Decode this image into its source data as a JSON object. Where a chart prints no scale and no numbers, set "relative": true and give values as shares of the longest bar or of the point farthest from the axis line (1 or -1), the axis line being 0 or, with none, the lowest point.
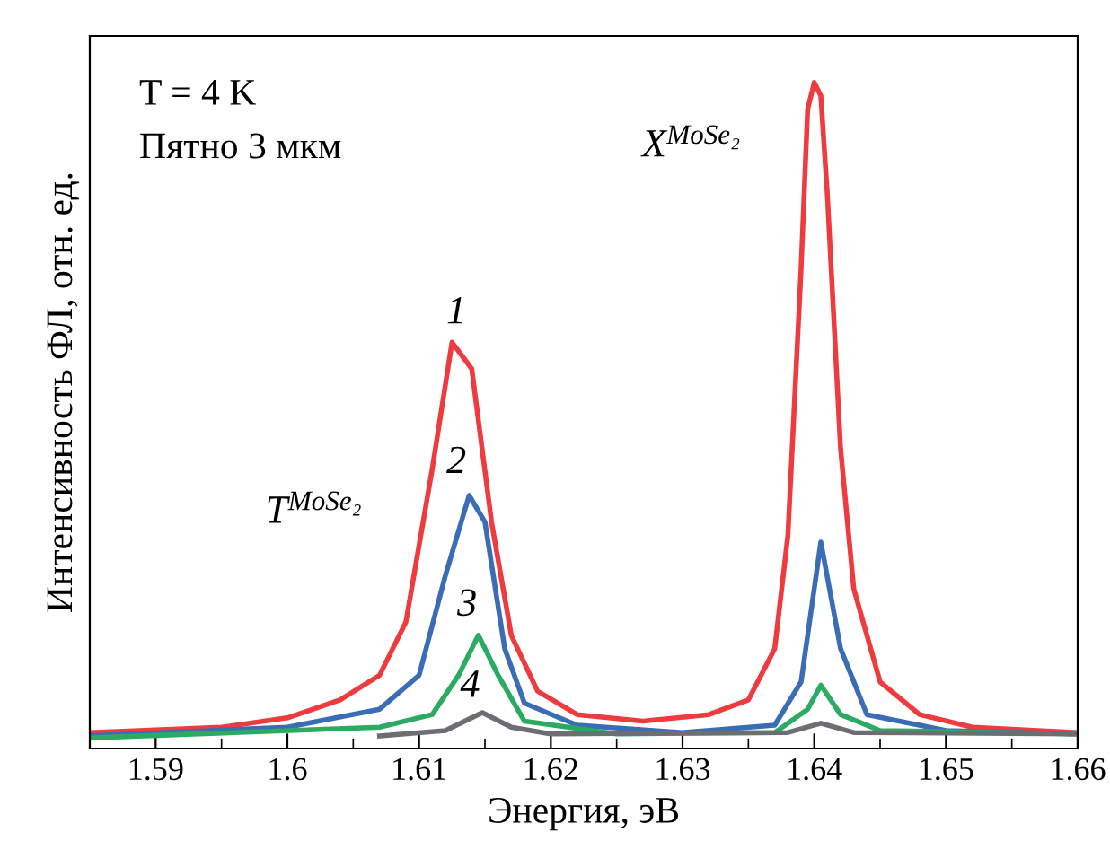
{
  "chart_data": {
    "type": "line",
    "relative": true,
    "xlabel": "Энергия, эВ",
    "ylabel": "Интенсивность ФЛ, отн. ед.",
    "xlim": [
      1.585,
      1.66
    ],
    "xticks": [
      1.59,
      1.6,
      1.61,
      1.62,
      1.63,
      1.64,
      1.65,
      1.66
    ],
    "tick_labels": "x",
    "grid": false,
    "legend": false,
    "marker": "none",
    "line_style": "solid",
    "series": [
      {
        "color": "#ee3b3f",
        "x": [
          1.585,
          1.595,
          1.6,
          1.604,
          1.607,
          1.609,
          1.611,
          1.6125,
          1.614,
          1.6155,
          1.617,
          1.619,
          1.622,
          1.627,
          1.632,
          1.635,
          1.637,
          1.638,
          1.639,
          1.6395,
          1.64,
          1.6405,
          1.641,
          1.642,
          1.643,
          1.645,
          1.648,
          1.652,
          1.66
        ],
        "values": [
          0.024,
          0.032,
          0.046,
          0.073,
          0.11,
          0.19,
          0.42,
          0.61,
          0.57,
          0.34,
          0.17,
          0.086,
          0.051,
          0.041,
          0.051,
          0.073,
          0.15,
          0.32,
          0.72,
          0.96,
          1.0,
          0.98,
          0.83,
          0.45,
          0.24,
          0.1,
          0.051,
          0.032,
          0.024
        ]
      },
      {
        "color": "#3a6db5",
        "x": [
          1.585,
          1.6,
          1.607,
          1.61,
          1.612,
          1.6138,
          1.615,
          1.6165,
          1.618,
          1.622,
          1.63,
          1.637,
          1.639,
          1.6405,
          1.642,
          1.644,
          1.65,
          1.66
        ],
        "values": [
          0.019,
          0.032,
          0.059,
          0.11,
          0.26,
          0.38,
          0.34,
          0.15,
          0.068,
          0.035,
          0.024,
          0.035,
          0.1,
          0.31,
          0.15,
          0.051,
          0.027,
          0.022
        ]
      },
      {
        "color": "#2bab62",
        "x": [
          1.585,
          1.607,
          1.611,
          1.613,
          1.6145,
          1.616,
          1.618,
          1.625,
          1.637,
          1.6395,
          1.6405,
          1.642,
          1.645,
          1.66
        ],
        "values": [
          0.016,
          0.032,
          0.051,
          0.11,
          0.17,
          0.11,
          0.041,
          0.022,
          0.024,
          0.059,
          0.095,
          0.051,
          0.027,
          0.022
        ]
      },
      {
        "color": "#6d6e71",
        "x": [
          1.607,
          1.612,
          1.6148,
          1.617,
          1.62,
          1.638,
          1.6405,
          1.643,
          1.66
        ],
        "values": [
          0.019,
          0.027,
          0.054,
          0.032,
          0.022,
          0.024,
          0.038,
          0.024,
          0.022
        ]
      }
    ],
    "annotations": [
      "T = 4 K",
      "Пятно 3 мкм",
      "1",
      "2",
      "3",
      "4",
      "T$^{MoSe₂}$",
      "X$^{MoSe₂}$"
    ]
  }
}
